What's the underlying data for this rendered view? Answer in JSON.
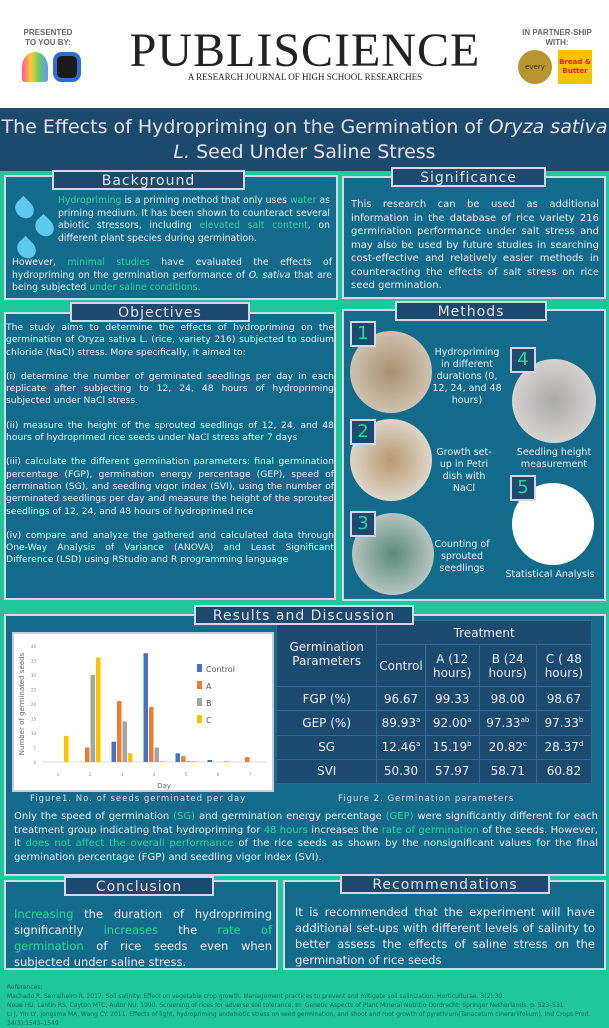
{
  "header": {
    "presented": "PRESENTED TO YOU BY:",
    "logo": "PUBLISCIENCE",
    "tagline": "A RESEARCH JOURNAL OF HIGH SCHOOL RESEARCHES",
    "partner": "IN PARTNER-SHIP WITH:",
    "partner1": "every",
    "partner2": "Bread & Butter"
  },
  "title": {
    "main": "The Effects of Hydropriming on the Germination of ",
    "italic": "Oryza sativa L.",
    "rest": " Seed Under Saline Stress"
  },
  "background": {
    "title": "Background",
    "p1": [
      "Hydropriming",
      " is a priming method that only uses ",
      "water",
      " as priming medium. It has been shown to counteract several abiotic stressors, including ",
      "elevated salt content",
      ", on different plant species during germination."
    ],
    "p2": [
      "However, ",
      "minimal studies",
      " have evaluated the effects of hydropriming on the germination performance of ",
      "O. sativa",
      " that are being subjected ",
      "under saline conditions."
    ]
  },
  "significance": {
    "title": "Significance",
    "text": "This research can be used as additional information in the database of rice variety 216 germination performance under salt stress and may also be used by future studies in searching cost-effective and relatively easier methods in counteracting the effects of salt stress on rice seed germination."
  },
  "objectives": {
    "title": "Objectives",
    "intro": "The study aims to determine the effects of hydropriming on the germination of Oryza sativa L. (rice, variety 216) subjected to sodium chloride (NaCl) stress. More specifically, it aimed to:",
    "items": [
      "(i) determine the number of germinated seedlings per day in each replicate after subjecting to 12, 24, 48 hours of hydropriming subjected under NaCl stress.",
      "(ii) measure the height of the sprouted seedlings of 12, 24, and 48  hours of hydroprimed rice seeds under NaCl stress after 7 days",
      "(iii) calculate the different germination parameters: final germination percentage (FGP), germination energy percentage (GEP), speed of germination (SG), and seedling vigor index (SVI), using the number of germinated seedlings per day and measure the height of the sprouted seedlings of 12, 24, and 48  hours of hydroprimed rice",
      "(iv) compare and analyze the gathered and calculated data through One-Way Analysis of Variance (ANOVA) and Least Significant Difference (LSD) using RStudio and R programming language"
    ]
  },
  "methods": {
    "title": "Methods",
    "steps": [
      {
        "n": "1",
        "label": "Hydropriming in different durations (0, 12, 24, and 48 hours)"
      },
      {
        "n": "2",
        "label": "Growth set-up in Petri dish with NaCl"
      },
      {
        "n": "3",
        "label": "Counting of sprouted seedlings"
      },
      {
        "n": "4",
        "label": "Seedling height measurement"
      },
      {
        "n": "5",
        "label": "Statistical Analysis"
      }
    ]
  },
  "results": {
    "title": "Results and Discussion",
    "fig1": "Figure1. No. of seeds germinated per day",
    "fig2": "Figure 2. Germination parameters",
    "table": {
      "corner": "Germination Parameters",
      "group": "Treatment",
      "cols": [
        "Control",
        "A (12 hours)",
        "B (24 hours)",
        "C ( 48 hours)"
      ],
      "rows": [
        {
          "p": "FGP (%)",
          "v": [
            [
              "96.67",
              ""
            ],
            [
              "99.33",
              ""
            ],
            [
              "98.00",
              ""
            ],
            [
              "98.67",
              ""
            ]
          ]
        },
        {
          "p": "GEP (%)",
          "v": [
            [
              "89.93",
              "a"
            ],
            [
              "92.00",
              "a"
            ],
            [
              "97.33",
              "ab"
            ],
            [
              "97.33",
              "b"
            ]
          ]
        },
        {
          "p": "SG",
          "v": [
            [
              "12.46",
              "a"
            ],
            [
              "15.19",
              "b"
            ],
            [
              "20.82",
              "c"
            ],
            [
              "28.37",
              "d"
            ]
          ]
        },
        {
          "p": "SVI",
          "v": [
            [
              "50.30",
              ""
            ],
            [
              "57.97",
              ""
            ],
            [
              "58.71",
              ""
            ],
            [
              "60.82",
              ""
            ]
          ]
        }
      ]
    },
    "discussion": [
      "Only the speed of germination ",
      "(SG)",
      " and germination energy percentage ",
      "(GEP)",
      " were significantly different for each treatment group indicating that hydropriming for ",
      "48 hours",
      " increases the ",
      "rate of germination",
      " of the seeds. However, it ",
      "does not affect the overall performance",
      " of the rice seeds as shown by the nonsignificant values for the final germination percentage (FGP) and seedling vigor index (SVI)."
    ]
  },
  "chart_data": {
    "type": "bar",
    "title": "",
    "xlabel": "Day",
    "ylabel": "Number of germinated seeds",
    "categories": [
      "1",
      "2",
      "3",
      "4",
      "5",
      "6",
      "7"
    ],
    "ylim": [
      0,
      40
    ],
    "yticks": [
      "0",
      "5",
      "10",
      "15",
      "20",
      "25",
      "30",
      "35",
      "40"
    ],
    "legend": "right",
    "series": [
      {
        "name": "Control",
        "color": "#4472c4",
        "values": [
          0,
          0,
          7,
          37.5,
          3,
          0.7,
          0
        ]
      },
      {
        "name": "A",
        "color": "#ed7d31",
        "values": [
          0,
          5,
          21,
          19,
          2,
          0,
          1.7
        ]
      },
      {
        "name": "B",
        "color": "#a5a5a5",
        "values": [
          0,
          30,
          14,
          5,
          0.3,
          0,
          0
        ]
      },
      {
        "name": "C",
        "color": "#ffc000",
        "values": [
          9,
          36,
          3,
          0.3,
          0.3,
          0.3,
          0
        ]
      }
    ]
  },
  "conclusion": {
    "title": "Conclusion",
    "text": [
      "Increasing",
      " the duration of hydropriming significantly ",
      "increases",
      " the ",
      "rate of germination",
      " of rice seeds even when subjected under saline stress."
    ]
  },
  "recommendations": {
    "title": "Recommendations",
    "text": "It is recommended that the experiment will have additional set-ups with different levels of salinity to better assess the effects of saline stress on the germination of rice seeds"
  },
  "references": {
    "label": "References:",
    "items": [
      "Machado R, Serralheiro R. 2017. Soil salinity: Effect on vegetable crop growth. Management practices to prevent and mitigate soil salinization. Horticulturae. 3(2):30.",
      "Neue HU, Lantin RS, Cayton MTC, Autor NU. 1990. Screening of rices for adverse soil tolerance. In: Genetic Aspects of Plant Mineral Nutritio Dordrecht: Springer Netherlands. p. 523–531.",
      "Li J, Yin LY, Jongsma MA, Wang CY. 2011. Effects of light, hydropriming andabiotic stress on seed germination, and shoot and root growth of pyrethrum(Tanacetum cinerariifolium). Ind Crops Prod. 34(3):1543–1549"
    ]
  }
}
